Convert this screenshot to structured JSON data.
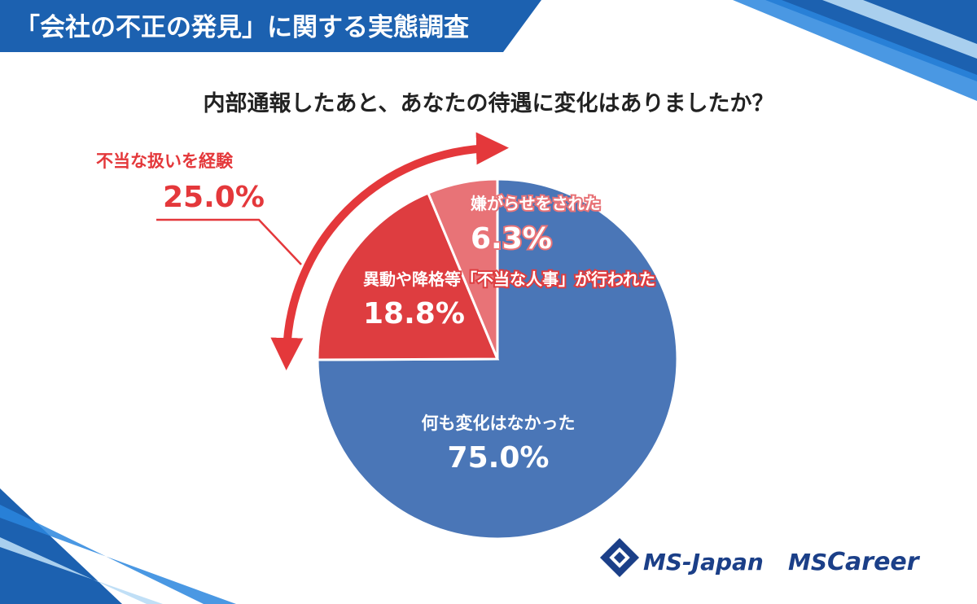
{
  "header": {
    "title": "「会社の不正の発見」に関する実態調査"
  },
  "colors": {
    "header_bg": "#1c61b0",
    "accent_blue": "#1f7cd6",
    "pie_blue": "#4a76b7",
    "pie_red": "#de3d40",
    "pie_pink": "#e87377",
    "annotation_red": "#e4383b",
    "title_text": "#222222",
    "logo_navy": "#1b3f88"
  },
  "chart_data": {
    "type": "pie",
    "title": "内部通報したあと、あなたの待遇に変化はありましたか？",
    "slices": [
      {
        "label": "何も変化はなかった",
        "value": 75.0,
        "value_label": "75.0%",
        "color": "#4a76b7"
      },
      {
        "label": "異動や降格等「不当な人事」が行われた",
        "value": 18.8,
        "value_label": "18.8%",
        "color": "#de3d40"
      },
      {
        "label": "嫌がらせをされた",
        "value": 6.3,
        "value_label": "6.3%",
        "color": "#e87377"
      }
    ],
    "start_angle": "12 o'clock",
    "direction": "clockwise",
    "group_annotation": {
      "label": "不当な扱いを経験",
      "value": 25.0,
      "value_label": "25.0%",
      "includes": [
        "異動や降格等「不当な人事」が行われた",
        "嫌がらせをされた"
      ]
    },
    "legend": "none"
  },
  "logos": {
    "brand1": "MS-Japan",
    "brand2_prefix": "MS",
    "brand2_suffix": "Career"
  },
  "icons": {
    "brand1_mark": "diamond-logo-icon",
    "group_arrow": "curved-double-arrow-icon"
  }
}
